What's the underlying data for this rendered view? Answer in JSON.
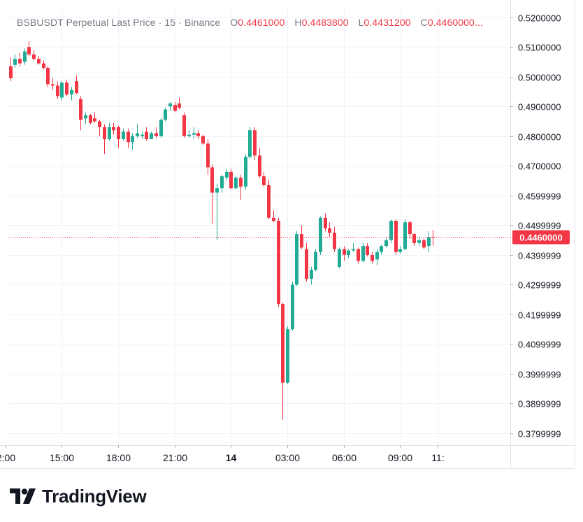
{
  "legend": {
    "symbol": "BSBUSDT Perpetual Last Price",
    "interval": "15",
    "exchange": "Binance",
    "open_label": "O",
    "open": "0.4461000",
    "high_label": "H",
    "high": "0.4483800",
    "low_label": "L",
    "low": "0.4431200",
    "close_label": "C",
    "close": "0.4460000..."
  },
  "brand": {
    "name": "TradingView"
  },
  "colors": {
    "up": "#22ab94",
    "down": "#f23645",
    "grid": "#f0f3fa",
    "axis_text": "#131722",
    "price_tag": "#f23645"
  },
  "chart_data": {
    "type": "candlestick",
    "interval_minutes": 15,
    "ylim": [
      0.376,
      0.523
    ],
    "y_ticks": [
      "0.5200000",
      "0.5100000",
      "0.5000000",
      "0.4900000",
      "0.4800000",
      "0.4700000",
      "0.4599999",
      "0.4499999",
      "0.4399999",
      "0.4299999",
      "0.4199999",
      "0.4099999",
      "0.3999999",
      "0.3899999",
      "0.3799999"
    ],
    "x_ticks": [
      {
        "label": "2:00",
        "t": "12:00"
      },
      {
        "label": "15:00",
        "t": "15:00"
      },
      {
        "label": "18:00",
        "t": "18:00"
      },
      {
        "label": "21:00",
        "t": "21:00"
      },
      {
        "label": "14",
        "t": "00:00",
        "bold": true
      },
      {
        "label": "03:00",
        "t": "03:00"
      },
      {
        "label": "06:00",
        "t": "06:00"
      },
      {
        "label": "09:00",
        "t": "09:00"
      },
      {
        "label": "11:",
        "t": "11:00"
      }
    ],
    "last_price": "0.4460000",
    "grid": true,
    "candles": [
      [
        0.5035,
        0.5065,
        0.4985,
        0.4995
      ],
      [
        0.504,
        0.5075,
        0.503,
        0.506
      ],
      [
        0.506,
        0.508,
        0.5035,
        0.5045
      ],
      [
        0.505,
        0.5095,
        0.504,
        0.5085
      ],
      [
        0.51,
        0.512,
        0.507,
        0.5075
      ],
      [
        0.5075,
        0.509,
        0.5055,
        0.506
      ],
      [
        0.506,
        0.507,
        0.504,
        0.5045
      ],
      [
        0.5045,
        0.5055,
        0.5025,
        0.503
      ],
      [
        0.503,
        0.5035,
        0.4965,
        0.4975
      ],
      [
        0.4975,
        0.4995,
        0.4955,
        0.497
      ],
      [
        0.497,
        0.4985,
        0.4925,
        0.4935
      ],
      [
        0.493,
        0.4985,
        0.492,
        0.498
      ],
      [
        0.498,
        0.499,
        0.4935,
        0.494
      ],
      [
        0.494,
        0.4965,
        0.492,
        0.4955
      ],
      [
        0.4985,
        0.5005,
        0.494,
        0.4945
      ],
      [
        0.4925,
        0.4935,
        0.482,
        0.4855
      ],
      [
        0.486,
        0.488,
        0.484,
        0.487
      ],
      [
        0.487,
        0.4875,
        0.484,
        0.4845
      ],
      [
        0.486,
        0.488,
        0.4845,
        0.485
      ],
      [
        0.485,
        0.4855,
        0.48,
        0.483
      ],
      [
        0.483,
        0.484,
        0.474,
        0.479
      ],
      [
        0.479,
        0.4845,
        0.4785,
        0.483
      ],
      [
        0.483,
        0.4845,
        0.4805,
        0.482
      ],
      [
        0.483,
        0.4835,
        0.476,
        0.479
      ],
      [
        0.479,
        0.4825,
        0.4785,
        0.4815
      ],
      [
        0.4815,
        0.4825,
        0.476,
        0.478
      ],
      [
        0.478,
        0.481,
        0.4755,
        0.48
      ],
      [
        0.48,
        0.484,
        0.4795,
        0.481
      ],
      [
        0.48,
        0.4815,
        0.479,
        0.4805
      ],
      [
        0.4815,
        0.483,
        0.4785,
        0.479
      ],
      [
        0.479,
        0.4815,
        0.479,
        0.481
      ],
      [
        0.481,
        0.483,
        0.4795,
        0.48
      ],
      [
        0.48,
        0.486,
        0.4795,
        0.4855
      ],
      [
        0.4855,
        0.4895,
        0.485,
        0.489
      ],
      [
        0.49,
        0.4915,
        0.4885,
        0.491
      ],
      [
        0.4905,
        0.4915,
        0.488,
        0.4885
      ],
      [
        0.491,
        0.493,
        0.489,
        0.4895
      ],
      [
        0.487,
        0.488,
        0.4795,
        0.48
      ],
      [
        0.48,
        0.482,
        0.4795,
        0.4805
      ],
      [
        0.4805,
        0.483,
        0.479,
        0.481
      ],
      [
        0.481,
        0.482,
        0.479,
        0.48
      ],
      [
        0.48,
        0.4805,
        0.477,
        0.4775
      ],
      [
        0.4775,
        0.479,
        0.467,
        0.4695
      ],
      [
        0.4695,
        0.4705,
        0.4505,
        0.461
      ],
      [
        0.461,
        0.464,
        0.445,
        0.4625
      ],
      [
        0.4625,
        0.467,
        0.461,
        0.4665
      ],
      [
        0.466,
        0.469,
        0.465,
        0.468
      ],
      [
        0.468,
        0.469,
        0.462,
        0.4625
      ],
      [
        0.4625,
        0.4665,
        0.462,
        0.466
      ],
      [
        0.466,
        0.467,
        0.4585,
        0.463
      ],
      [
        0.463,
        0.474,
        0.462,
        0.473
      ],
      [
        0.473,
        0.483,
        0.4725,
        0.482
      ],
      [
        0.482,
        0.483,
        0.472,
        0.4735
      ],
      [
        0.4735,
        0.476,
        0.466,
        0.4665
      ],
      [
        0.4665,
        0.468,
        0.463,
        0.4635
      ],
      [
        0.4635,
        0.4655,
        0.452,
        0.4525
      ],
      [
        0.4525,
        0.455,
        0.451,
        0.4515
      ],
      [
        0.4515,
        0.4525,
        0.4225,
        0.4235
      ],
      [
        0.4235,
        0.424,
        0.3845,
        0.397
      ],
      [
        0.397,
        0.416,
        0.3965,
        0.415
      ],
      [
        0.415,
        0.431,
        0.4145,
        0.43
      ],
      [
        0.43,
        0.448,
        0.4295,
        0.447
      ],
      [
        0.447,
        0.45,
        0.442,
        0.4425
      ],
      [
        0.442,
        0.444,
        0.431,
        0.432
      ],
      [
        0.432,
        0.436,
        0.43,
        0.435
      ],
      [
        0.435,
        0.442,
        0.4345,
        0.441
      ],
      [
        0.441,
        0.453,
        0.44,
        0.4525
      ],
      [
        0.4525,
        0.454,
        0.448,
        0.449
      ],
      [
        0.449,
        0.451,
        0.446,
        0.4475
      ],
      [
        0.4475,
        0.4495,
        0.441,
        0.442
      ],
      [
        0.436,
        0.4425,
        0.4355,
        0.442
      ],
      [
        0.442,
        0.443,
        0.438,
        0.44
      ],
      [
        0.44,
        0.442,
        0.439,
        0.4415
      ],
      [
        0.4415,
        0.444,
        0.441,
        0.442
      ],
      [
        0.442,
        0.4425,
        0.437,
        0.438
      ],
      [
        0.438,
        0.444,
        0.4375,
        0.443
      ],
      [
        0.443,
        0.444,
        0.4395,
        0.44
      ],
      [
        0.44,
        0.441,
        0.437,
        0.438
      ],
      [
        0.4385,
        0.442,
        0.4365,
        0.441
      ],
      [
        0.441,
        0.4435,
        0.44,
        0.443
      ],
      [
        0.443,
        0.446,
        0.4425,
        0.445
      ],
      [
        0.445,
        0.452,
        0.444,
        0.4515
      ],
      [
        0.4515,
        0.452,
        0.44,
        0.441
      ],
      [
        0.441,
        0.443,
        0.4405,
        0.442
      ],
      [
        0.442,
        0.452,
        0.4415,
        0.451
      ],
      [
        0.451,
        0.4515,
        0.4455,
        0.447
      ],
      [
        0.447,
        0.4475,
        0.443,
        0.444
      ],
      [
        0.444,
        0.446,
        0.443,
        0.445
      ],
      [
        0.445,
        0.4455,
        0.442,
        0.4425
      ],
      [
        0.443,
        0.448,
        0.441,
        0.446
      ],
      [
        0.4461,
        0.4484,
        0.4431,
        0.446
      ]
    ]
  }
}
